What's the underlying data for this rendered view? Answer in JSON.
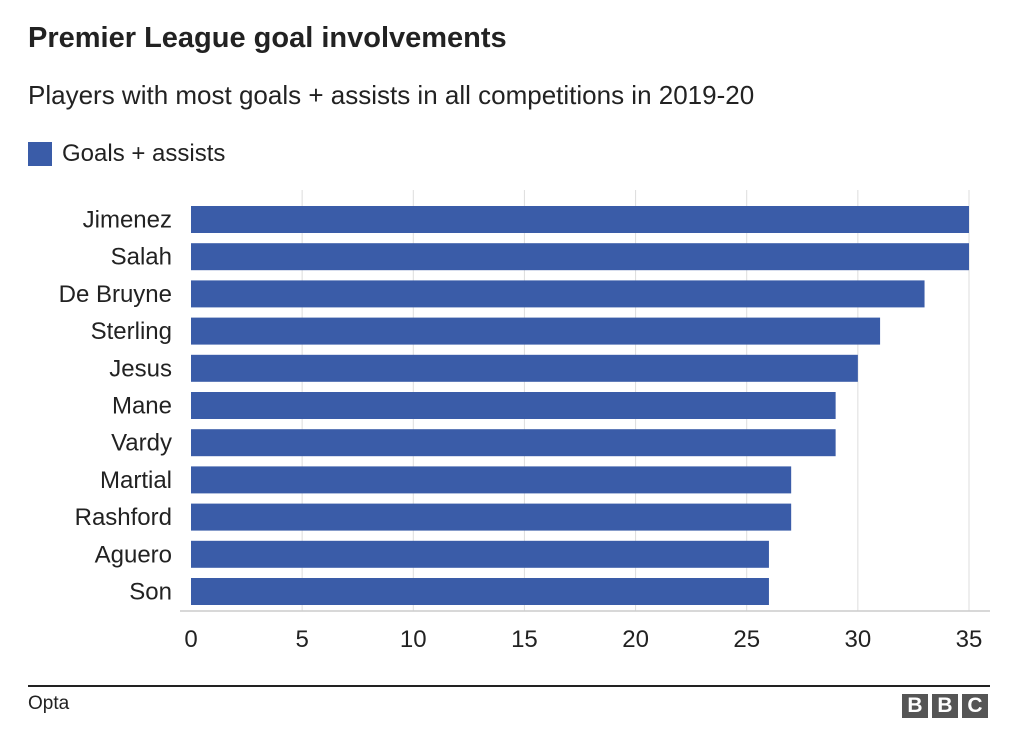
{
  "chart_data": {
    "type": "bar",
    "orientation": "horizontal",
    "title": "Premier League goal involvements",
    "subtitle": "Players with most goals + assists in all competitions in 2019-20",
    "categories": [
      "Jimenez",
      "Salah",
      "De Bruyne",
      "Sterling",
      "Jesus",
      "Mane",
      "Vardy",
      "Martial",
      "Rashford",
      "Aguero",
      "Son"
    ],
    "series": [
      {
        "name": "Goals + assists",
        "values": [
          35,
          35,
          33,
          31,
          30,
          29,
          29,
          27,
          27,
          26,
          26
        ],
        "color": "#3a5ca8"
      }
    ],
    "xlim": [
      0,
      35
    ],
    "xticks": [
      0,
      5,
      10,
      15,
      20,
      25,
      30,
      35
    ],
    "xlabel": "",
    "ylabel": "",
    "grid": "vertical",
    "legend_position": "top-left",
    "gridline_color": "#dddddd"
  },
  "footer": {
    "source": "Opta",
    "logo_letters": [
      "B",
      "B",
      "C"
    ]
  }
}
